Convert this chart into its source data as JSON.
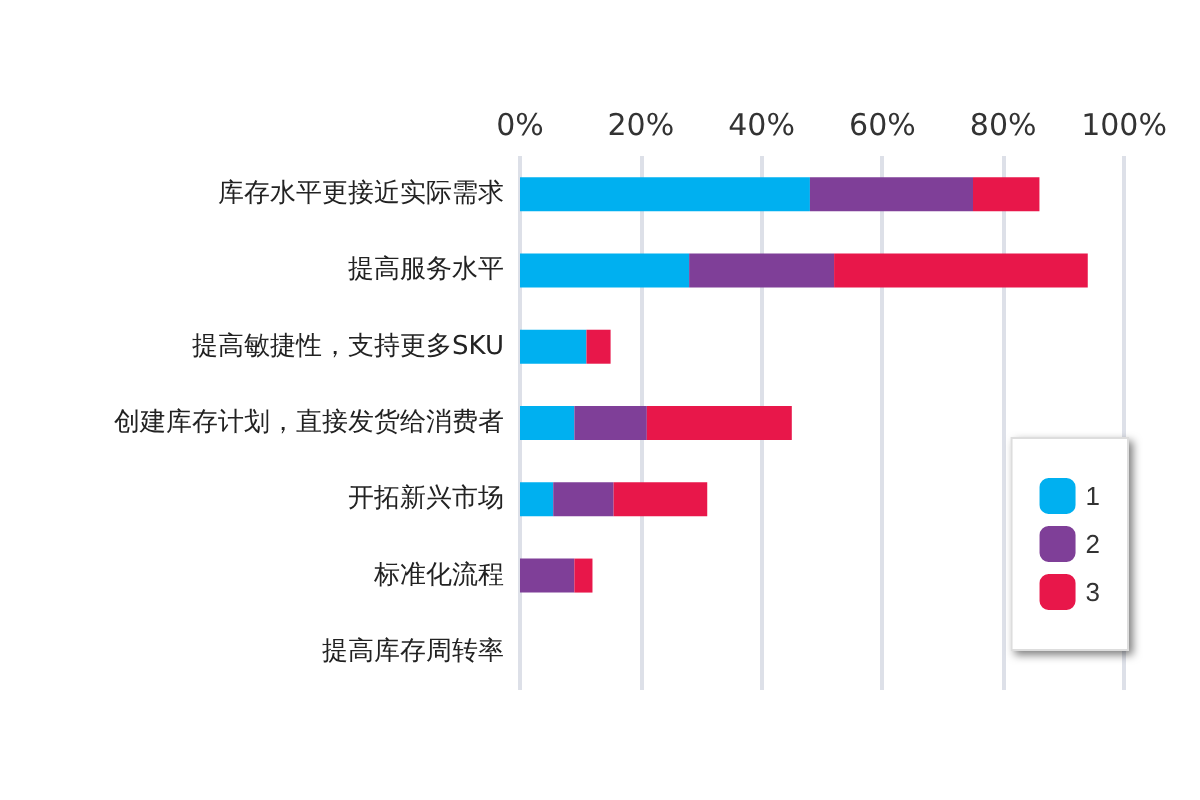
{
  "chart_data": {
    "type": "bar",
    "orientation": "horizontal",
    "stacked": true,
    "categories": [
      "库存水平更接近实际需求",
      "提高服务水平",
      "提高敏捷性，支持更多SKU",
      "创建库存计划，直接发货给消费者",
      "开拓新兴市场",
      "标准化流程",
      "提高库存周转率"
    ],
    "series": [
      {
        "name": "1",
        "color": "#00b0f0",
        "values": [
          48,
          28,
          11,
          9,
          5.5,
          0,
          0
        ]
      },
      {
        "name": "2",
        "color": "#7f3f98",
        "values": [
          27,
          24,
          0,
          12,
          10,
          9,
          0
        ]
      },
      {
        "name": "3",
        "color": "#e8174a",
        "values": [
          11,
          42,
          4,
          24,
          15.5,
          3,
          0
        ]
      }
    ],
    "xlim": [
      0,
      100
    ],
    "xticks": [
      {
        "value": 0,
        "label": "0%"
      },
      {
        "value": 20,
        "label": "20%"
      },
      {
        "value": 40,
        "label": "40%"
      },
      {
        "value": 60,
        "label": "60%"
      },
      {
        "value": 80,
        "label": "80%"
      },
      {
        "value": 100,
        "label": "100%"
      }
    ],
    "grid": "x",
    "legend": "bottom right"
  }
}
